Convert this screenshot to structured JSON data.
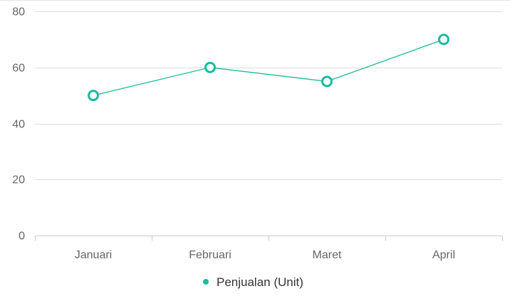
{
  "chart_data": {
    "type": "line",
    "categories": [
      "Januari",
      "Februari",
      "Maret",
      "April"
    ],
    "series": [
      {
        "name": "Penjualan (Unit)",
        "values": [
          50,
          60,
          55,
          70
        ]
      }
    ],
    "y_ticks": [
      0,
      20,
      40,
      60,
      80
    ],
    "ylim": [
      0,
      80
    ],
    "grid": true,
    "legend_position": "bottom-center",
    "colors": {
      "series": "#1abc9c",
      "grid": "#dddddd",
      "axis": "#cccccc",
      "text": "#666666",
      "legend_text": "#333333"
    }
  }
}
